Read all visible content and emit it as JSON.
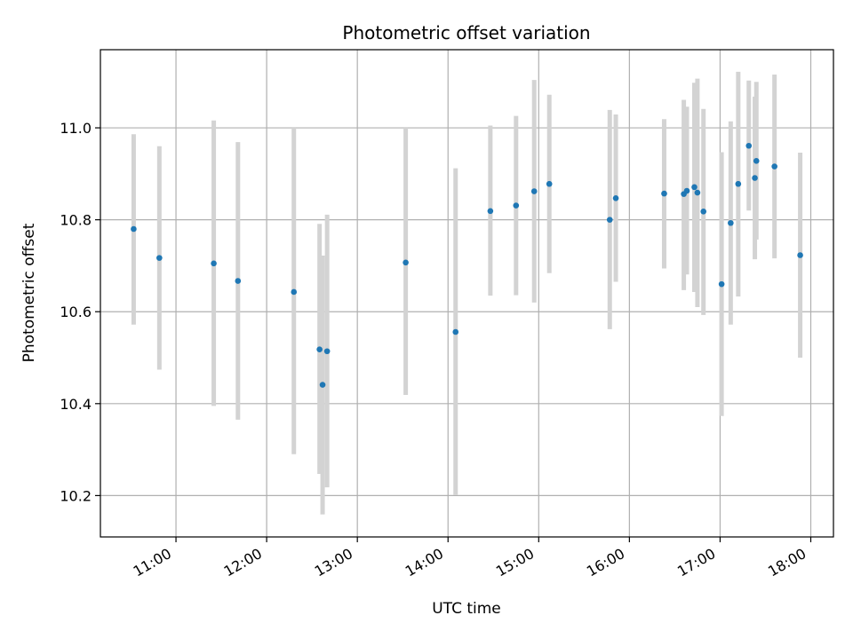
{
  "chart_data": {
    "type": "scatter",
    "title": "Photometric offset variation",
    "xlabel": "UTC time",
    "ylabel": "Photometric offset",
    "x_ticks": [
      "11:00",
      "12:00",
      "13:00",
      "14:00",
      "15:00",
      "16:00",
      "17:00",
      "18:00"
    ],
    "y_ticks": [
      "10.2",
      "10.4",
      "10.6",
      "10.8",
      "11.0"
    ],
    "xlim": [
      "10:10",
      "18:15"
    ],
    "ylim": [
      10.11,
      11.17
    ],
    "grid": true,
    "colors": {
      "point": "#1f77b4",
      "errorbar": "#d3d3d3",
      "grid": "#b0b0b0"
    },
    "points": [
      {
        "x": "10:32",
        "y": 10.78,
        "ylow": 10.572,
        "yhigh": 10.986
      },
      {
        "x": "10:49",
        "y": 10.717,
        "ylow": 10.474,
        "yhigh": 10.96
      },
      {
        "x": "11:25",
        "y": 10.705,
        "ylow": 10.395,
        "yhigh": 11.016
      },
      {
        "x": "11:41",
        "y": 10.667,
        "ylow": 10.365,
        "yhigh": 10.969
      },
      {
        "x": "12:18",
        "y": 10.643,
        "ylow": 10.29,
        "yhigh": 11.0
      },
      {
        "x": "12:35",
        "y": 10.518,
        "ylow": 10.247,
        "yhigh": 10.791
      },
      {
        "x": "12:37",
        "y": 10.441,
        "ylow": 10.159,
        "yhigh": 10.722
      },
      {
        "x": "12:40",
        "y": 10.514,
        "ylow": 10.218,
        "yhigh": 10.811
      },
      {
        "x": "13:32",
        "y": 10.707,
        "ylow": 10.419,
        "yhigh": 11.0
      },
      {
        "x": "14:05",
        "y": 10.556,
        "ylow": 10.201,
        "yhigh": 10.912
      },
      {
        "x": "14:28",
        "y": 10.819,
        "ylow": 10.635,
        "yhigh": 11.005
      },
      {
        "x": "14:45",
        "y": 10.831,
        "ylow": 10.636,
        "yhigh": 11.026
      },
      {
        "x": "14:57",
        "y": 10.862,
        "ylow": 10.62,
        "yhigh": 11.104
      },
      {
        "x": "15:07",
        "y": 10.878,
        "ylow": 10.684,
        "yhigh": 11.072
      },
      {
        "x": "15:47",
        "y": 10.8,
        "ylow": 10.562,
        "yhigh": 11.039
      },
      {
        "x": "15:51",
        "y": 10.847,
        "ylow": 10.665,
        "yhigh": 11.029
      },
      {
        "x": "16:23",
        "y": 10.857,
        "ylow": 10.694,
        "yhigh": 11.019
      },
      {
        "x": "16:36",
        "y": 10.856,
        "ylow": 10.647,
        "yhigh": 11.061
      },
      {
        "x": "16:38",
        "y": 10.863,
        "ylow": 10.681,
        "yhigh": 11.046
      },
      {
        "x": "16:43",
        "y": 10.871,
        "ylow": 10.643,
        "yhigh": 11.098
      },
      {
        "x": "16:45",
        "y": 10.859,
        "ylow": 10.61,
        "yhigh": 11.107
      },
      {
        "x": "16:49",
        "y": 10.818,
        "ylow": 10.593,
        "yhigh": 11.041
      },
      {
        "x": "17:01",
        "y": 10.66,
        "ylow": 10.373,
        "yhigh": 10.947
      },
      {
        "x": "17:07",
        "y": 10.793,
        "ylow": 10.572,
        "yhigh": 11.014
      },
      {
        "x": "17:12",
        "y": 10.878,
        "ylow": 10.633,
        "yhigh": 11.122
      },
      {
        "x": "17:19",
        "y": 10.961,
        "ylow": 10.82,
        "yhigh": 11.103
      },
      {
        "x": "17:23",
        "y": 10.891,
        "ylow": 10.714,
        "yhigh": 11.068
      },
      {
        "x": "17:24",
        "y": 10.928,
        "ylow": 10.757,
        "yhigh": 11.1
      },
      {
        "x": "17:36",
        "y": 10.916,
        "ylow": 10.716,
        "yhigh": 11.116
      },
      {
        "x": "17:53",
        "y": 10.723,
        "ylow": 10.5,
        "yhigh": 10.946
      }
    ]
  }
}
